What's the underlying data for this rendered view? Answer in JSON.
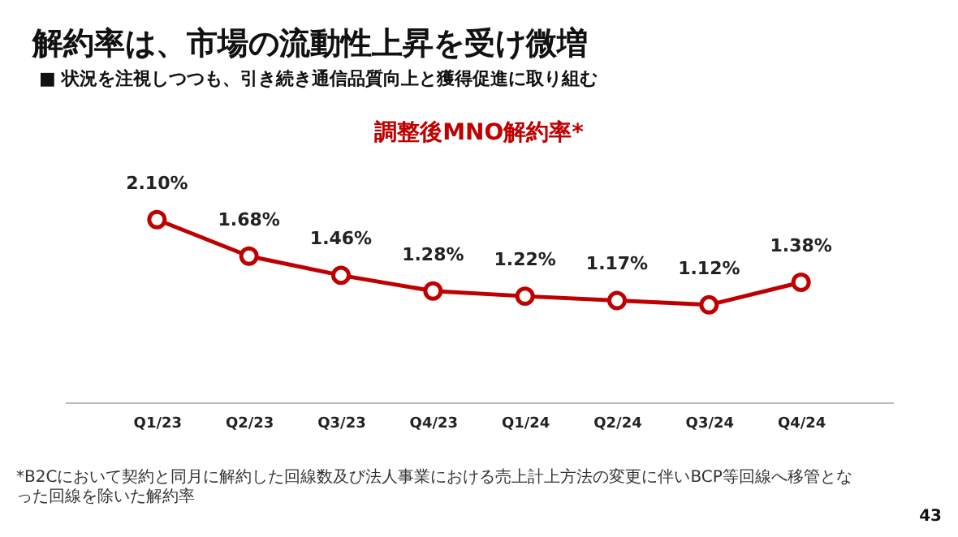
{
  "chart_data": {
    "type": "line",
    "title": "解約率は、市場の流動性上昇を受け微増",
    "subtitle": "■  状況を注視しつつも、引き続き通信品質向上と獲得促進に取り組む",
    "annotations": [
      "調整後MNO解約率*",
      "*B2Cにおいて契約と同月に解約した回線数及び法人事業における売上計上方法の変更に伴いBCP等回線へ移管となった回線を除いた解約率",
      "43"
    ],
    "categories": [
      "Q1/23",
      "Q2/23",
      "Q3/23",
      "Q4/23",
      "Q1/24",
      "Q2/24",
      "Q3/24",
      "Q4/24"
    ],
    "series": [
      {
        "color": "#bf0000",
        "values": [
          2.1,
          1.68,
          1.46,
          1.28,
          1.22,
          1.17,
          1.12,
          1.38
        ],
        "value_labels": [
          "2.10%",
          "1.68%",
          "1.46%",
          "1.28%",
          "1.22%",
          "1.17%",
          "1.12%",
          "1.38%"
        ]
      }
    ],
    "tick_labels": "x",
    "grid": false,
    "marker": "circle",
    "line_style": "solid"
  }
}
